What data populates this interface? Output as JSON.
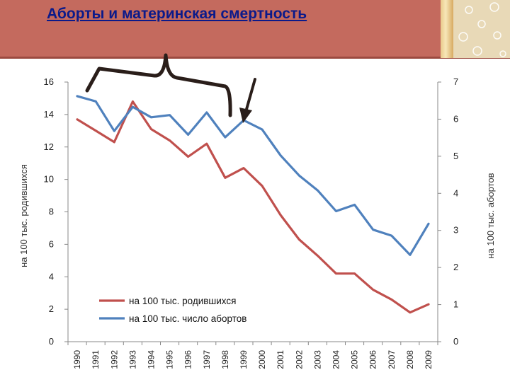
{
  "slide": {
    "title": "Аборты и материнская смертность"
  },
  "chart_data": {
    "type": "line",
    "ylabel_left": "на 100 тыс. родившихся",
    "ylabel_right": "на 100 тыс. абортов",
    "ylim_left": [
      0,
      16
    ],
    "ylim_right": [
      0,
      7
    ],
    "yticks_left": [
      "0",
      "2",
      "4",
      "6",
      "8",
      "10",
      "12",
      "14",
      "16"
    ],
    "yticks_right": [
      "0",
      "1",
      "2",
      "3",
      "4",
      "5",
      "6",
      "7"
    ],
    "x": [
      "1990",
      "1991",
      "1992",
      "1993",
      "1994",
      "1995",
      "1996",
      "1997",
      "1998",
      "1999",
      "2000",
      "2001",
      "2002",
      "2003",
      "2004",
      "2005",
      "2006",
      "2007",
      "2008",
      "2009"
    ],
    "series": [
      {
        "name": "на 100 тыс. родившихся",
        "axis": "left",
        "color": "#c0504d",
        "values": [
          13.7,
          13.0,
          12.3,
          14.8,
          13.1,
          12.4,
          11.4,
          12.2,
          10.1,
          10.7,
          9.6,
          7.8,
          6.3,
          5.3,
          4.2,
          4.2,
          3.2,
          2.6,
          1.8,
          2.3
        ]
      },
      {
        "name": "на 100 тыс. число абортов",
        "axis": "right",
        "color": "#4f81bd",
        "values": [
          6.62,
          6.48,
          5.68,
          6.33,
          6.05,
          6.11,
          5.58,
          6.18,
          5.51,
          5.97,
          5.72,
          5.02,
          4.48,
          4.08,
          3.52,
          3.69,
          3.02,
          2.86,
          2.34,
          3.18
        ]
      }
    ],
    "legend_placement": "lower-left",
    "grid": false,
    "annotations": [
      "brace over 1990-1998",
      "arrow pointing to 1999"
    ]
  }
}
